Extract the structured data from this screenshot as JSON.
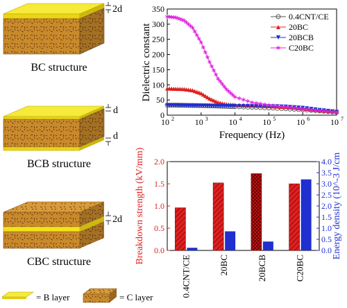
{
  "structures": [
    {
      "caption": "BC structure",
      "marks": [
        "2d"
      ]
    },
    {
      "caption": "BCB structure",
      "marks": [
        "d",
        "d"
      ]
    },
    {
      "caption": "CBC structure",
      "marks": [
        "2d"
      ]
    }
  ],
  "legend": {
    "b_layer": "= B layer",
    "c_layer": "= C layer",
    "colors": {
      "b_layer": "#f2e619",
      "c_layer": "#c98a2c"
    }
  },
  "chart_data": [
    {
      "type": "line",
      "xlabel": "Frequency (Hz)",
      "ylabel": "Dielectric constant",
      "xscale": "log",
      "xlim": [
        100,
        10000000
      ],
      "ylim": [
        0,
        350
      ],
      "xticks": [
        "10^2",
        "10^3",
        "10^4",
        "10^5",
        "10^6",
        "10^7"
      ],
      "yticks": [
        0,
        50,
        100,
        150,
        200,
        250,
        300,
        350
      ],
      "legend_position": "top-right",
      "series": [
        {
          "name": "0.4CNT/CE",
          "color": "#555555",
          "marker": "circle-open",
          "x": [
            100,
            178,
            316,
            562,
            1000,
            1778,
            3162,
            5623,
            10000,
            31623,
            100000,
            316228,
            1000000,
            3162278,
            10000000
          ],
          "y": [
            33,
            33,
            32.5,
            32,
            31.5,
            31,
            30,
            29,
            28,
            26,
            24,
            21,
            18,
            14,
            10
          ]
        },
        {
          "name": "20BC",
          "color": "#e02020",
          "marker": "triangle",
          "x": [
            100,
            178,
            316,
            562,
            1000,
            1778,
            3162,
            5623,
            10000,
            31623,
            100000,
            316228,
            1000000,
            3162278,
            10000000
          ],
          "y": [
            88,
            87,
            86,
            82,
            72,
            55,
            42,
            36,
            34,
            32,
            30,
            27,
            22,
            16,
            11
          ]
        },
        {
          "name": "20BCB",
          "color": "#1f2fd0",
          "marker": "triangle-down",
          "x": [
            100,
            178,
            316,
            562,
            1000,
            1778,
            3162,
            5623,
            10000,
            31623,
            100000,
            316228,
            1000000,
            3162278,
            10000000
          ],
          "y": [
            32,
            32,
            31.5,
            31,
            31,
            30.5,
            30,
            30,
            30,
            30,
            29.5,
            28,
            24,
            17,
            11
          ]
        },
        {
          "name": "C20BC",
          "color": "#e020e0",
          "marker": "star",
          "x": [
            100,
            178,
            316,
            562,
            1000,
            1778,
            3162,
            5623,
            10000,
            31623,
            100000,
            316228,
            1000000,
            3162278,
            10000000
          ],
          "y": [
            325,
            322,
            312,
            288,
            240,
            175,
            120,
            85,
            60,
            42,
            33,
            27,
            21,
            15,
            10
          ]
        }
      ]
    },
    {
      "type": "bar",
      "categories": [
        "0.4CNT/CE",
        "20BC",
        "20BCB",
        "C20BC"
      ],
      "ylabel_left": "Breakdown strength (kV/mm)",
      "ylabel_right": "Energy density (10^-3 J/cm",
      "ylim_left": [
        0,
        2.0
      ],
      "ylim_right": [
        0,
        4.0
      ],
      "yticks_left": [
        "0.0",
        "0.5",
        "1.0",
        "1.5",
        "2.0"
      ],
      "yticks_right": [
        "0.0",
        "0.5",
        "1.0",
        "1.5",
        "2.0",
        "2.5",
        "3.0",
        "3.5",
        "4.0"
      ],
      "series": [
        {
          "axis": "left",
          "color": "#e02020",
          "pattern": "hatch",
          "values": [
            0.96,
            1.52,
            1.73,
            1.5
          ]
        },
        {
          "axis": "right",
          "color": "#1f2fd0",
          "pattern": "solid",
          "values": [
            0.12,
            0.86,
            0.4,
            3.2
          ]
        }
      ]
    }
  ]
}
